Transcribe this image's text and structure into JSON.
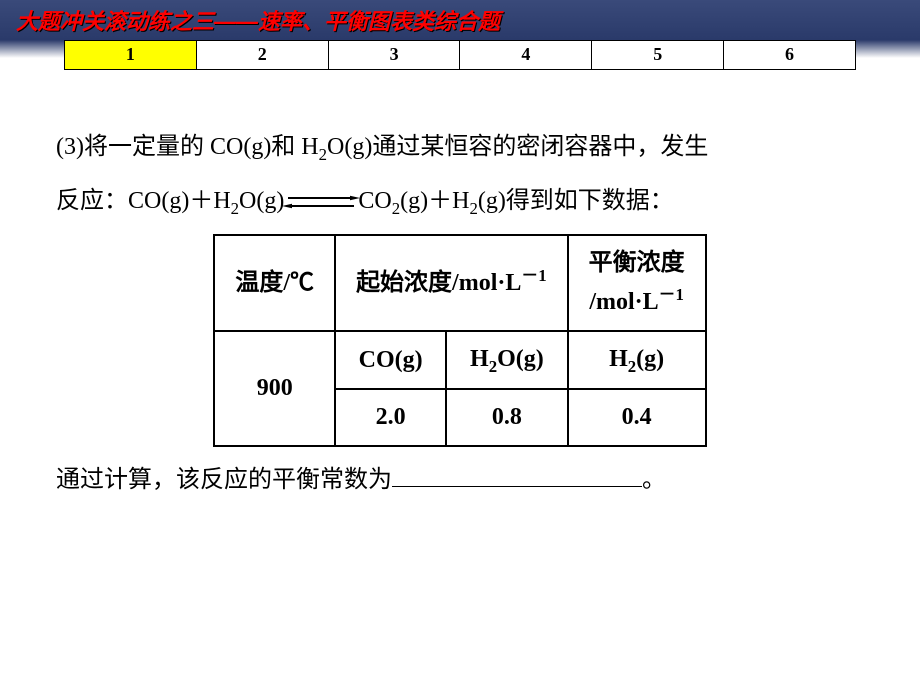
{
  "header": {
    "title": "大题冲关滚动练之三——速率、平衡图表类综合题"
  },
  "nav": {
    "items": [
      "1",
      "2",
      "3",
      "4",
      "5",
      "6"
    ],
    "active_index": 0
  },
  "body": {
    "para1_prefix": "(3)将一定量的 CO(g)和 H",
    "para1_sub1": "2",
    "para1_mid1": "O(g)通过某恒容的密闭容器中，发生",
    "para2_prefix": "反应：CO(g)＋H",
    "para2_sub1": "2",
    "para2_mid1": "O(g)",
    "para2_after_arrow": "CO",
    "para2_sub2": "2",
    "para2_mid2": "(g)＋H",
    "para2_sub3": "2",
    "para2_mid3": "(g)得到如下数据：",
    "para3_prefix": "通过计算，该反应的平衡常数为",
    "para3_suffix": "。"
  },
  "table": {
    "header": {
      "col1": "温度/℃",
      "col2_pre": "起始浓度/mol·L",
      "col2_sup": "－1",
      "col3_line1": "平衡浓度",
      "col3_line2_pre": "/mol·L",
      "col3_line2_sup": "－1"
    },
    "row_temp": "900",
    "row_labels": {
      "c1": "CO(g)",
      "c2_pre": "H",
      "c2_sub": "2",
      "c2_post": "O(g)",
      "c3_pre": "H",
      "c3_sub": "2",
      "c3_post": "(g)"
    },
    "row_values": {
      "c1": "2.0",
      "c2": "0.8",
      "c3": "0.4"
    }
  }
}
